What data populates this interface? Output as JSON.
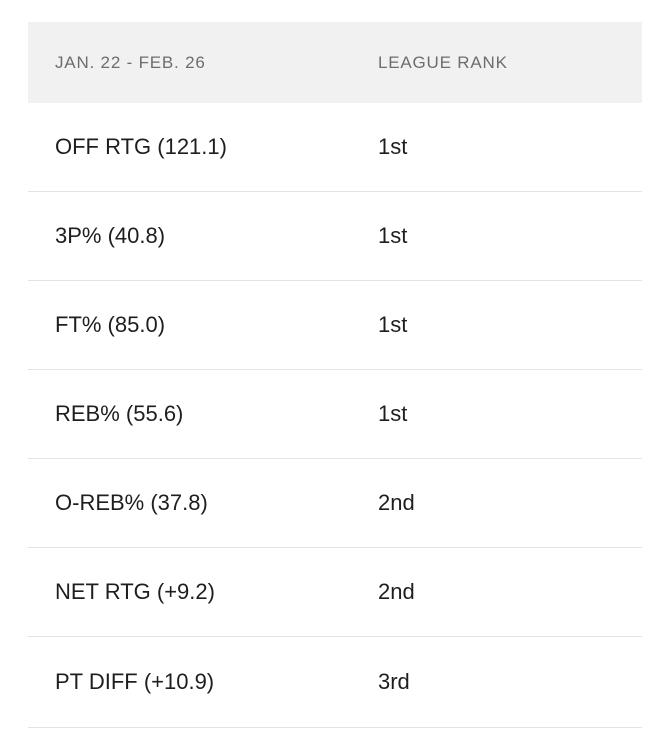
{
  "table": {
    "header": {
      "period": "JAN. 22 - FEB. 26",
      "rank_label": "LEAGUE RANK"
    },
    "rows": [
      {
        "stat": "OFF RTG (121.1)",
        "rank": "1st"
      },
      {
        "stat": "3P% (40.8)",
        "rank": "1st"
      },
      {
        "stat": "FT% (85.0)",
        "rank": "1st"
      },
      {
        "stat": "REB% (55.6)",
        "rank": "1st"
      },
      {
        "stat": "O-REB% (37.8)",
        "rank": "2nd"
      },
      {
        "stat": "NET RTG (+9.2)",
        "rank": "2nd"
      },
      {
        "stat": "PT DIFF (+10.9)",
        "rank": "3rd"
      }
    ],
    "colors": {
      "header_bg": "#f1f1f1",
      "header_text": "#6d6d6d",
      "row_text": "#1e1e1e",
      "divider": "#e4e4e4",
      "page_bg": "#ffffff"
    }
  }
}
